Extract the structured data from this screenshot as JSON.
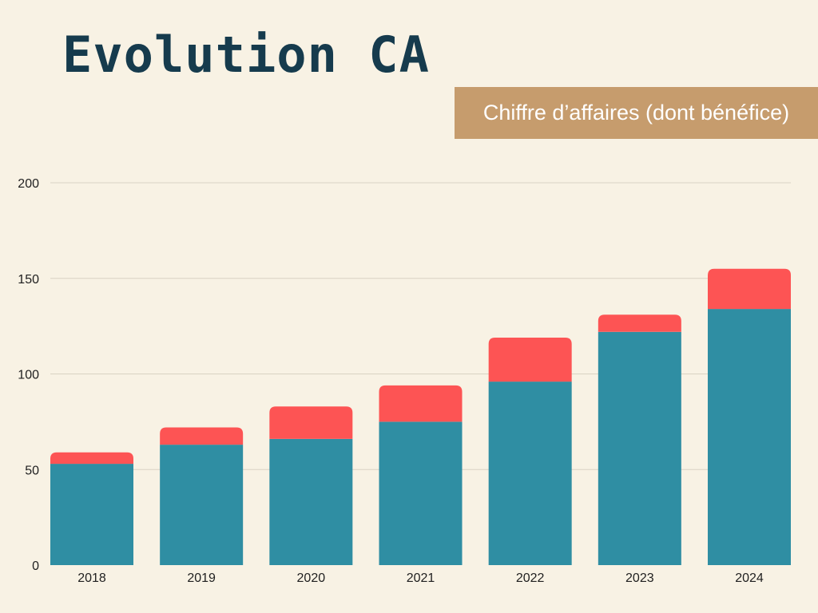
{
  "page": {
    "title": "Evolution CA",
    "legend_label": "Chiffre d’affaires (dont bénéfice)"
  },
  "colors": {
    "background": "#f8f2e4",
    "title": "#163b4d",
    "legend_box": "#c69c6d",
    "revenue_bar": "#2f8ea3",
    "profit_bar": "#fd5454",
    "grid": "#d9d2c3"
  },
  "chart_data": {
    "type": "bar",
    "stacked": true,
    "title": "Evolution CA",
    "categories": [
      "2018",
      "2019",
      "2020",
      "2021",
      "2022",
      "2023",
      "2024"
    ],
    "series": [
      {
        "name": "",
        "color": "#2f8ea3",
        "values": [
          53,
          63,
          66,
          75,
          96,
          122,
          134
        ]
      },
      {
        "name": "",
        "color": "#fd5454",
        "values": [
          6,
          9,
          17,
          19,
          23,
          9,
          21
        ]
      }
    ],
    "legend": "Chiffre d’affaires (dont bénéfice)",
    "legend_position": "top-right",
    "ylim": [
      0,
      200
    ],
    "yticks": [
      0,
      50,
      100,
      150,
      200
    ],
    "grid": true
  }
}
